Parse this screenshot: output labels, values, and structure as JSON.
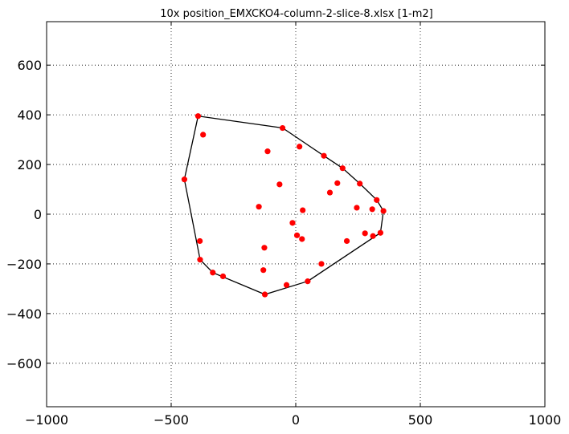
{
  "chart_data": {
    "type": "scatter",
    "title": "10x position_EMXCKO4-column-2-slice-8.xlsx   [1-m2]",
    "xlabel": "",
    "ylabel": "",
    "xlim": [
      -1000,
      1000
    ],
    "ylim": [
      -775,
      775
    ],
    "xticks": [
      -1000,
      -500,
      0,
      500,
      1000
    ],
    "yticks": [
      -600,
      -400,
      -200,
      0,
      200,
      400,
      600
    ],
    "xtick_labels": [
      "−1000",
      "−500",
      "0",
      "500",
      "1000"
    ],
    "ytick_labels": [
      "−600",
      "−400",
      "−200",
      "0",
      "200",
      "400",
      "600"
    ],
    "grid": true,
    "colors": {
      "points": "#ff0000",
      "hull": "#000000",
      "grid": "#000000"
    },
    "points": [
      {
        "x": -392,
        "y": 395
      },
      {
        "x": -372,
        "y": 320
      },
      {
        "x": -447,
        "y": 140
      },
      {
        "x": -385,
        "y": -108
      },
      {
        "x": -384,
        "y": -183
      },
      {
        "x": -333,
        "y": -235
      },
      {
        "x": -292,
        "y": -250
      },
      {
        "x": -124,
        "y": -323
      },
      {
        "x": -130,
        "y": -225
      },
      {
        "x": -126,
        "y": -135
      },
      {
        "x": -148,
        "y": 30
      },
      {
        "x": -113,
        "y": 253
      },
      {
        "x": -65,
        "y": 120
      },
      {
        "x": -53,
        "y": 347
      },
      {
        "x": 15,
        "y": 272
      },
      {
        "x": 28,
        "y": 16
      },
      {
        "x": -13,
        "y": -35
      },
      {
        "x": 5,
        "y": -85
      },
      {
        "x": 25,
        "y": -100
      },
      {
        "x": -37,
        "y": -285
      },
      {
        "x": 48,
        "y": -270
      },
      {
        "x": 103,
        "y": -200
      },
      {
        "x": 113,
        "y": 235
      },
      {
        "x": 137,
        "y": 87
      },
      {
        "x": 167,
        "y": 125
      },
      {
        "x": 188,
        "y": 185
      },
      {
        "x": 205,
        "y": -108
      },
      {
        "x": 245,
        "y": 26
      },
      {
        "x": 257,
        "y": 123
      },
      {
        "x": 278,
        "y": -77
      },
      {
        "x": 307,
        "y": 20
      },
      {
        "x": 310,
        "y": -88
      },
      {
        "x": 325,
        "y": 57
      },
      {
        "x": 340,
        "y": -75
      },
      {
        "x": 352,
        "y": 13
      }
    ],
    "hull": [
      {
        "x": -392,
        "y": 395
      },
      {
        "x": -53,
        "y": 347
      },
      {
        "x": 113,
        "y": 235
      },
      {
        "x": 188,
        "y": 185
      },
      {
        "x": 257,
        "y": 123
      },
      {
        "x": 325,
        "y": 57
      },
      {
        "x": 352,
        "y": 13
      },
      {
        "x": 340,
        "y": -75
      },
      {
        "x": 48,
        "y": -270
      },
      {
        "x": -124,
        "y": -323
      },
      {
        "x": -333,
        "y": -235
      },
      {
        "x": -384,
        "y": -183
      },
      {
        "x": -447,
        "y": 140
      },
      {
        "x": -392,
        "y": 395
      }
    ]
  }
}
